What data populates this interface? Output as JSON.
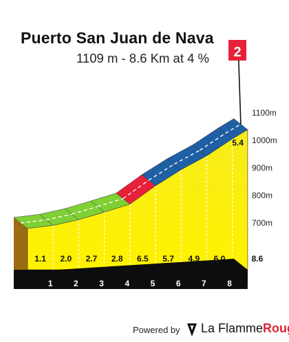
{
  "title": "Puerto San Juan de Nava",
  "subtitle": "1109 m - 8.6 Km at 4 %",
  "category_flag": "2",
  "footer": {
    "powered_label": "Powered by",
    "brand_name": "La Flamme",
    "brand_accent": "Rouge"
  },
  "colors": {
    "gradient_low": "#fff200",
    "segment_green": "#7fd034",
    "segment_red": "#e8213b",
    "segment_blue": "#1f5fa3",
    "base_black": "#0d0d0d",
    "side_brown": "#9b6c12",
    "flag_red": "#e8213b"
  },
  "chart_data": {
    "type": "area",
    "title": "Puerto San Juan de Nava",
    "subtitle": "1109 m - 8.6 Km at 4 %",
    "x_unit": "km",
    "y_unit": "m",
    "distance_total": 8.6,
    "ylim": [
      600,
      1100
    ],
    "y_ticks": [
      "700m",
      "800m",
      "900m",
      "1000m",
      "1100m"
    ],
    "y_tick_values": [
      700,
      800,
      900,
      1000,
      1100
    ],
    "x_tick_labels": [
      "1",
      "2",
      "3",
      "4",
      "5",
      "6",
      "7",
      "8",
      "8.6"
    ],
    "x_tick_values": [
      1,
      2,
      3,
      4,
      5,
      6,
      7,
      8,
      8.6
    ],
    "km_gradients": [
      {
        "label": "1.1",
        "value": 1.1
      },
      {
        "label": "2.0",
        "value": 2.0
      },
      {
        "label": "2.7",
        "value": 2.7
      },
      {
        "label": "2.8",
        "value": 2.8
      },
      {
        "label": "6.5",
        "value": 6.5
      },
      {
        "label": "5.7",
        "value": 5.7
      },
      {
        "label": "4.9",
        "value": 4.9
      },
      {
        "label": "6.0",
        "value": 6.0
      },
      {
        "label": "5.4",
        "value": 5.4
      }
    ],
    "segment_colors": [
      "green",
      "green",
      "green",
      "green",
      "red",
      "blue",
      "blue",
      "blue",
      "blue"
    ],
    "summit_elevation": 1109
  }
}
